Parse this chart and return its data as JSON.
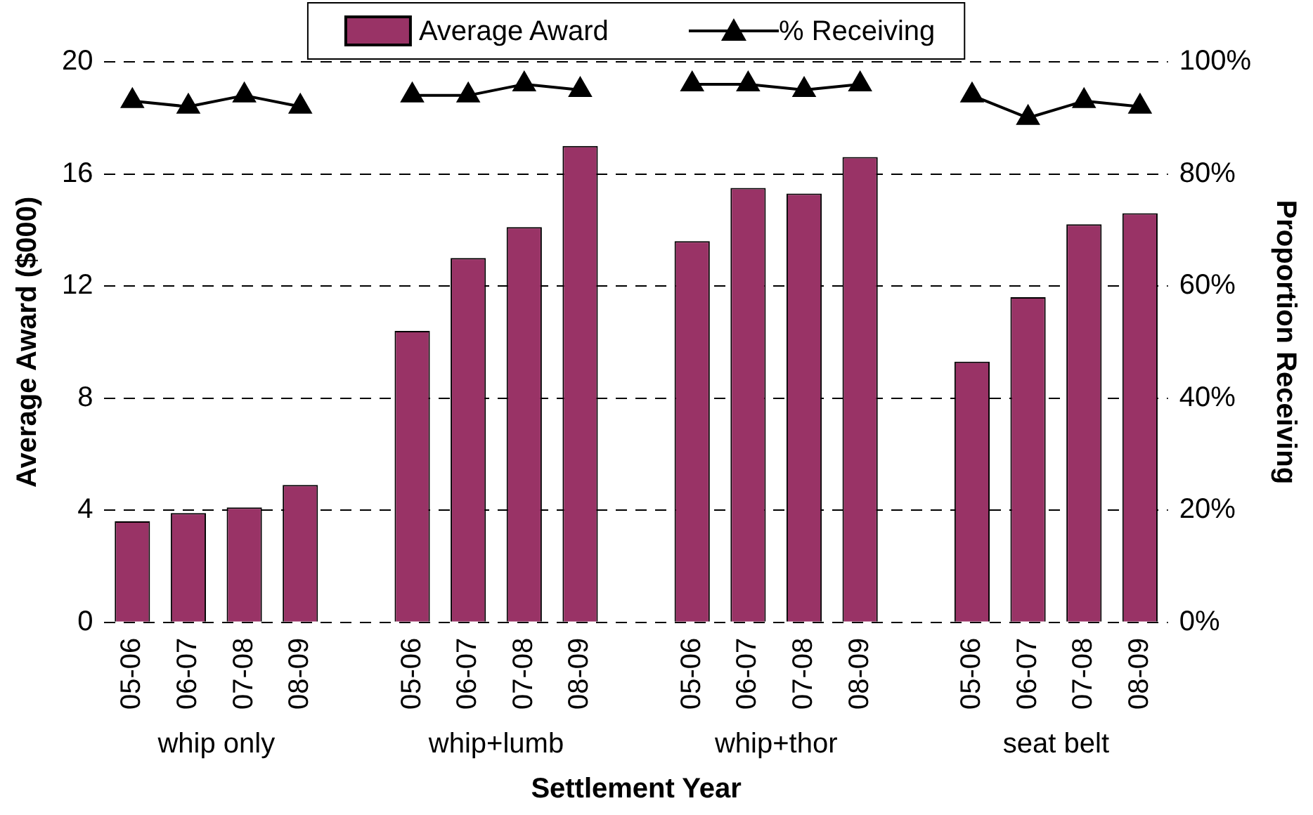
{
  "chart_data": {
    "type": "bar",
    "xlabel": "Settlement Year",
    "ylabel": "Average Award ($000)",
    "y2label": "Proportion Receiving",
    "categories": [
      "05-06",
      "06-07",
      "07-08",
      "08-09",
      null,
      "05-06",
      "06-07",
      "07-08",
      "08-09",
      null,
      "05-06",
      "06-07",
      "07-08",
      "08-09",
      null,
      "05-06",
      "06-07",
      "07-08",
      "08-09"
    ],
    "series": [
      {
        "name": "Average Award",
        "color": "#993366",
        "values": [
          3.6,
          3.9,
          4.1,
          4.9,
          null,
          10.4,
          13.0,
          14.1,
          17.0,
          null,
          13.6,
          15.5,
          15.3,
          16.6,
          null,
          9.3,
          11.6,
          14.2,
          14.6
        ]
      },
      {
        "name": "% Receiving",
        "type": "line",
        "axis": "y2",
        "color": "#000000",
        "values": [
          93,
          92,
          94,
          92,
          null,
          94,
          94,
          96,
          95,
          null,
          96,
          96,
          95,
          96,
          null,
          94,
          90,
          93,
          92
        ]
      }
    ],
    "ylim": [
      0,
      20
    ],
    "yticks": [
      0,
      4,
      8,
      12,
      16,
      20
    ],
    "y2lim": [
      0,
      100
    ],
    "y2ticks": [
      {
        "value": 0,
        "label": "0%"
      },
      {
        "value": 20,
        "label": "20%"
      },
      {
        "value": 40,
        "label": "40%"
      },
      {
        "value": 60,
        "label": "60%"
      },
      {
        "value": 80,
        "label": "80%"
      },
      {
        "value": 100,
        "label": "100%"
      }
    ],
    "annotations": [
      "whip only",
      "whip+lumb",
      "whip+thor",
      "seat belt"
    ],
    "grid": "y",
    "legend": "top",
    "marker": "triangle",
    "line_style": "solid"
  }
}
